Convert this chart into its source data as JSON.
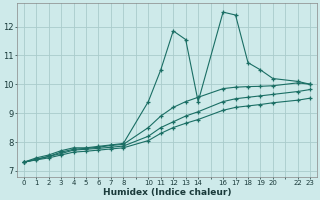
{
  "xlabel": "Humidex (Indice chaleur)",
  "bg_color": "#ceeaea",
  "grid_color": "#aacccc",
  "line_color": "#1a6e64",
  "xlim": [
    -0.5,
    23.5
  ],
  "ylim": [
    6.8,
    12.8
  ],
  "xticks": [
    0,
    1,
    2,
    3,
    4,
    5,
    6,
    7,
    8,
    9,
    10,
    11,
    12,
    13,
    14,
    15,
    16,
    17,
    18,
    19,
    20,
    21,
    22,
    23
  ],
  "xtick_labels": [
    "0",
    "1",
    "2",
    "3",
    "4",
    "5",
    "6",
    "7",
    "8",
    "",
    "10",
    "11",
    "12",
    "13",
    "14",
    "",
    "16",
    "17",
    "18",
    "19",
    "20",
    "",
    "22",
    "23"
  ],
  "yticks": [
    7,
    8,
    9,
    10,
    11,
    12
  ],
  "series1_x": [
    0,
    1,
    2,
    3,
    4,
    5,
    6,
    7,
    8,
    10,
    11,
    12,
    13,
    14,
    16,
    17,
    18,
    19,
    20,
    22,
    23
  ],
  "series1_y": [
    7.3,
    7.45,
    7.55,
    7.7,
    7.8,
    7.8,
    7.85,
    7.9,
    7.95,
    9.4,
    10.5,
    11.85,
    11.55,
    9.4,
    12.5,
    12.4,
    10.75,
    10.5,
    10.2,
    10.1,
    10.0
  ],
  "series2_x": [
    0,
    1,
    2,
    3,
    4,
    5,
    6,
    7,
    8,
    10,
    11,
    12,
    13,
    14,
    16,
    17,
    18,
    19,
    20,
    22,
    23
  ],
  "series2_y": [
    7.3,
    7.4,
    7.5,
    7.65,
    7.75,
    7.78,
    7.82,
    7.88,
    7.92,
    8.5,
    8.9,
    9.2,
    9.4,
    9.55,
    9.85,
    9.9,
    9.92,
    9.93,
    9.95,
    10.05,
    10.0
  ],
  "series3_x": [
    0,
    1,
    2,
    3,
    4,
    5,
    6,
    7,
    8,
    10,
    11,
    12,
    13,
    14,
    16,
    17,
    18,
    19,
    20,
    22,
    23
  ],
  "series3_y": [
    7.3,
    7.4,
    7.5,
    7.6,
    7.72,
    7.75,
    7.78,
    7.82,
    7.86,
    8.2,
    8.5,
    8.7,
    8.9,
    9.05,
    9.4,
    9.5,
    9.55,
    9.6,
    9.65,
    9.75,
    9.82
  ],
  "series4_x": [
    0,
    1,
    2,
    3,
    4,
    5,
    6,
    7,
    8,
    10,
    11,
    12,
    13,
    14,
    16,
    17,
    18,
    19,
    20,
    22,
    23
  ],
  "series4_y": [
    7.3,
    7.38,
    7.45,
    7.55,
    7.65,
    7.68,
    7.72,
    7.76,
    7.8,
    8.05,
    8.3,
    8.5,
    8.65,
    8.78,
    9.1,
    9.2,
    9.25,
    9.3,
    9.36,
    9.45,
    9.52
  ]
}
